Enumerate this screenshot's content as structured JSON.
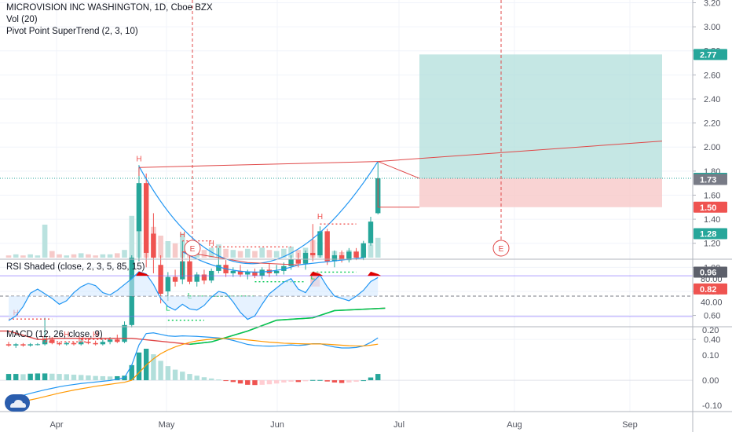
{
  "header": {
    "symbol_line": "MICROVISION INC WASHINGTON, 1D, Cboe BZX",
    "vol_label": "Vol (20)",
    "supertrend_label": "Pivot Point SuperTrend (2, 3, 10)"
  },
  "rsi_pane": {
    "label": "RSI Shaded (close, 2, 3, 5, 85, 15)"
  },
  "macd_pane": {
    "label": "MACD (12, 26, close, 9)"
  },
  "colors": {
    "up": "#26a69a",
    "down": "#ef5350",
    "profit_zone": "#b2dfdb",
    "loss_zone": "#f8c8c8",
    "trend_line": "#e04848",
    "supertrend": "#00c853",
    "blue": "#2196f3",
    "orange": "#ff9800"
  },
  "chart_data": [
    {
      "type": "candlestick",
      "title": "MICROVISION INC WASHINGTON, 1D, Cboe BZX",
      "x_tick_labels": [
        "Apr",
        "May",
        "Jun",
        "Jul",
        "Aug",
        "Sep"
      ],
      "y_ticks": [
        "0.40",
        "0.60",
        "0.80",
        "1.00",
        "1.20",
        "1.40",
        "1.60",
        "1.80",
        "2.00",
        "2.20",
        "2.40",
        "2.60",
        "2.80",
        "3.00",
        "3.20"
      ],
      "ylim": [
        0.32,
        3.28
      ],
      "price_tags": [
        {
          "label": "2.77",
          "value": 2.77,
          "color": "#26a69a"
        },
        {
          "label": "1.74",
          "value": 1.74,
          "color": "#26a69a"
        },
        {
          "label": "1.73",
          "value": 1.73,
          "color": "#787b86"
        },
        {
          "label": "1.50",
          "value": 1.5,
          "color": "#ef5350"
        },
        {
          "label": "1.28",
          "value": 1.28,
          "color": "#26a69a"
        },
        {
          "label": "0.96",
          "value": 0.96,
          "color": "#5d606b"
        },
        {
          "label": "0.82",
          "value": 0.82,
          "color": "#ef5350"
        }
      ],
      "candles": [
        {
          "d": 0,
          "o": 0.36,
          "h": 0.38,
          "l": 0.34,
          "c": 0.35
        },
        {
          "d": 1,
          "o": 0.35,
          "h": 0.37,
          "l": 0.33,
          "c": 0.36
        },
        {
          "d": 2,
          "o": 0.36,
          "h": 0.37,
          "l": 0.34,
          "c": 0.35
        },
        {
          "d": 3,
          "o": 0.35,
          "h": 0.37,
          "l": 0.34,
          "c": 0.36
        },
        {
          "d": 4,
          "o": 0.36,
          "h": 0.37,
          "l": 0.35,
          "c": 0.36
        },
        {
          "d": 5,
          "o": 0.36,
          "h": 0.58,
          "l": 0.35,
          "c": 0.4
        },
        {
          "d": 6,
          "o": 0.4,
          "h": 0.42,
          "l": 0.36,
          "c": 0.37
        },
        {
          "d": 7,
          "o": 0.37,
          "h": 0.38,
          "l": 0.35,
          "c": 0.36
        },
        {
          "d": 8,
          "o": 0.36,
          "h": 0.38,
          "l": 0.35,
          "c": 0.37
        },
        {
          "d": 9,
          "o": 0.37,
          "h": 0.38,
          "l": 0.35,
          "c": 0.36
        },
        {
          "d": 10,
          "o": 0.36,
          "h": 0.4,
          "l": 0.35,
          "c": 0.38
        },
        {
          "d": 11,
          "o": 0.38,
          "h": 0.41,
          "l": 0.36,
          "c": 0.37
        },
        {
          "d": 12,
          "o": 0.37,
          "h": 0.39,
          "l": 0.35,
          "c": 0.36
        },
        {
          "d": 13,
          "o": 0.36,
          "h": 0.4,
          "l": 0.35,
          "c": 0.38
        },
        {
          "d": 14,
          "o": 0.38,
          "h": 0.42,
          "l": 0.36,
          "c": 0.4
        },
        {
          "d": 15,
          "o": 0.4,
          "h": 0.44,
          "l": 0.37,
          "c": 0.38
        },
        {
          "d": 16,
          "o": 0.38,
          "h": 0.55,
          "l": 0.37,
          "c": 0.52
        },
        {
          "d": 17,
          "o": 0.52,
          "h": 1.1,
          "l": 0.5,
          "c": 1.08
        },
        {
          "d": 18,
          "o": 1.3,
          "h": 1.85,
          "l": 1.05,
          "c": 1.7
        },
        {
          "d": 19,
          "o": 1.7,
          "h": 1.78,
          "l": 1.0,
          "c": 1.12
        },
        {
          "d": 20,
          "o": 1.28,
          "h": 1.45,
          "l": 0.95,
          "c": 1.08
        },
        {
          "d": 21,
          "o": 1.02,
          "h": 1.1,
          "l": 0.7,
          "c": 0.78
        },
        {
          "d": 22,
          "o": 0.8,
          "h": 0.96,
          "l": 0.72,
          "c": 0.92
        },
        {
          "d": 23,
          "o": 0.92,
          "h": 0.98,
          "l": 0.84,
          "c": 0.88
        },
        {
          "d": 24,
          "o": 0.9,
          "h": 1.22,
          "l": 0.86,
          "c": 1.05
        },
        {
          "d": 25,
          "o": 1.05,
          "h": 1.1,
          "l": 0.86,
          "c": 0.88
        },
        {
          "d": 26,
          "o": 0.88,
          "h": 0.96,
          "l": 0.84,
          "c": 0.94
        },
        {
          "d": 27,
          "o": 0.94,
          "h": 0.98,
          "l": 0.86,
          "c": 0.89
        },
        {
          "d": 28,
          "o": 0.89,
          "h": 0.99,
          "l": 0.87,
          "c": 0.97
        },
        {
          "d": 29,
          "o": 0.97,
          "h": 1.16,
          "l": 0.95,
          "c": 1.02
        },
        {
          "d": 30,
          "o": 1.02,
          "h": 1.06,
          "l": 0.92,
          "c": 0.95
        },
        {
          "d": 31,
          "o": 0.95,
          "h": 1.0,
          "l": 0.92,
          "c": 0.97
        },
        {
          "d": 32,
          "o": 0.97,
          "h": 1.02,
          "l": 0.92,
          "c": 0.94
        },
        {
          "d": 33,
          "o": 0.94,
          "h": 0.98,
          "l": 0.9,
          "c": 0.96
        },
        {
          "d": 34,
          "o": 0.96,
          "h": 0.99,
          "l": 0.91,
          "c": 0.93
        },
        {
          "d": 35,
          "o": 0.93,
          "h": 1.0,
          "l": 0.9,
          "c": 0.98
        },
        {
          "d": 36,
          "o": 0.98,
          "h": 1.03,
          "l": 0.92,
          "c": 0.95
        },
        {
          "d": 37,
          "o": 0.95,
          "h": 1.02,
          "l": 0.93,
          "c": 0.97
        },
        {
          "d": 38,
          "o": 0.97,
          "h": 1.04,
          "l": 0.94,
          "c": 1.01
        },
        {
          "d": 39,
          "o": 1.01,
          "h": 1.1,
          "l": 0.98,
          "c": 1.07
        },
        {
          "d": 40,
          "o": 1.07,
          "h": 1.12,
          "l": 1.0,
          "c": 1.03
        },
        {
          "d": 41,
          "o": 1.03,
          "h": 1.14,
          "l": 0.98,
          "c": 1.12
        },
        {
          "d": 42,
          "o": 1.12,
          "h": 1.36,
          "l": 1.05,
          "c": 1.1
        },
        {
          "d": 43,
          "o": 1.1,
          "h": 1.34,
          "l": 1.08,
          "c": 1.3
        },
        {
          "d": 44,
          "o": 1.3,
          "h": 1.32,
          "l": 1.02,
          "c": 1.05
        },
        {
          "d": 45,
          "o": 1.05,
          "h": 1.14,
          "l": 1.0,
          "c": 1.1
        },
        {
          "d": 46,
          "o": 1.1,
          "h": 1.14,
          "l": 1.04,
          "c": 1.06
        },
        {
          "d": 47,
          "o": 1.06,
          "h": 1.16,
          "l": 1.04,
          "c": 1.13
        },
        {
          "d": 48,
          "o": 1.13,
          "h": 1.16,
          "l": 1.06,
          "c": 1.08
        },
        {
          "d": 49,
          "o": 1.08,
          "h": 1.22,
          "l": 1.06,
          "c": 1.2
        },
        {
          "d": 50,
          "o": 1.2,
          "h": 1.42,
          "l": 1.18,
          "c": 1.38
        },
        {
          "d": 51,
          "o": 1.45,
          "h": 1.88,
          "l": 1.44,
          "c": 1.74
        }
      ],
      "volume": [
        2,
        3,
        2,
        3,
        2,
        30,
        6,
        3,
        2,
        3,
        4,
        3,
        2,
        3,
        3,
        4,
        7,
        38,
        65,
        42,
        28,
        20,
        15,
        13,
        22,
        10,
        8,
        7,
        9,
        12,
        8,
        7,
        6,
        8,
        6,
        9,
        7,
        6,
        8,
        10,
        7,
        9,
        16,
        14,
        9,
        6,
        5,
        7,
        6,
        8,
        12,
        18
      ],
      "supertrend": [
        {
          "d": 0,
          "v": 0.47
        },
        {
          "d": 4,
          "v": 0.4
        },
        {
          "d": 5,
          "v": 0.4
        },
        {
          "d": 6,
          "v": 0.41
        },
        {
          "d": 16,
          "v": 0.41
        },
        {
          "d": 17,
          "v": 0.41
        },
        {
          "d": 25,
          "v": 0.36
        },
        {
          "d": 28,
          "v": 0.38
        },
        {
          "d": 33,
          "v": 0.47
        },
        {
          "d": 37,
          "v": 0.56
        },
        {
          "d": 42,
          "v": 0.58
        },
        {
          "d": 45,
          "v": 0.64
        },
        {
          "d": 52,
          "v": 0.66
        }
      ],
      "pivot_labels": [
        {
          "t": "H",
          "d": -5.5,
          "v": 0.38
        },
        {
          "t": "H",
          "d": -3,
          "v": 0.38
        },
        {
          "t": "H",
          "d": 1,
          "v": 0.6
        },
        {
          "t": "H",
          "d": 5,
          "v": 0.38
        },
        {
          "t": "H",
          "d": 8,
          "v": 0.42
        },
        {
          "t": "H",
          "d": 10,
          "v": 0.38
        },
        {
          "t": "H",
          "d": 12,
          "v": 0.42
        },
        {
          "t": "H",
          "d": 18,
          "v": 1.88
        },
        {
          "t": "H",
          "d": 24,
          "v": 1.25
        },
        {
          "t": "H",
          "d": 28,
          "v": 1.18
        },
        {
          "t": "H",
          "d": 43,
          "v": 1.4
        },
        {
          "t": "L",
          "d": 22,
          "v": 0.64
        },
        {
          "t": "L",
          "d": 25,
          "v": 0.74
        },
        {
          "t": "L",
          "d": 42,
          "v": 0.9
        }
      ]
    },
    {
      "type": "line",
      "title": "RSI Shaded (close, 2, 3, 5, 85, 15)",
      "y_ticks": [
        "40.00",
        "80.00"
      ],
      "ylim": [
        -5,
        105
      ],
      "bands": [
        85,
        50,
        15
      ],
      "series": [
        {
          "color": "#2196f3",
          "values": [
            8,
            16,
            32,
            55,
            62,
            54,
            46,
            36,
            42,
            56,
            66,
            72,
            68,
            56,
            52,
            60,
            70,
            80,
            92,
            88,
            70,
            46,
            32,
            26,
            36,
            28,
            26,
            34,
            48,
            58,
            55,
            40,
            22,
            10,
            16,
            36,
            54,
            64,
            74,
            80,
            62,
            56,
            74,
            86,
            66,
            50,
            46,
            42,
            50,
            60,
            75,
            82
          ]
        }
      ]
    },
    {
      "type": "line",
      "title": "MACD (12, 26, close, 9)",
      "y_ticks": [
        "-0.10",
        "0.00",
        "0.10",
        "0.20"
      ],
      "ylim": [
        -0.13,
        0.22
      ],
      "series": [
        {
          "color": "#2196f3",
          "values": [
            -0.07,
            -0.065,
            -0.06,
            -0.052,
            -0.045,
            -0.038,
            -0.032,
            -0.026,
            -0.021,
            -0.017,
            -0.013,
            -0.01,
            -0.007,
            -0.004,
            -0.001,
            0.004,
            0.01,
            0.06,
            0.14,
            0.185,
            0.188,
            0.182,
            0.176,
            0.174,
            0.176,
            0.175,
            0.174,
            0.172,
            0.17,
            0.168,
            0.164,
            0.158,
            0.15,
            0.142,
            0.138,
            0.136,
            0.135,
            0.136,
            0.138,
            0.14,
            0.138,
            0.14,
            0.145,
            0.145,
            0.138,
            0.132,
            0.128,
            0.128,
            0.13,
            0.136,
            0.15,
            0.168
          ]
        },
        {
          "color": "#ff9800",
          "values": [
            -0.095,
            -0.09,
            -0.084,
            -0.078,
            -0.072,
            -0.065,
            -0.058,
            -0.051,
            -0.045,
            -0.039,
            -0.034,
            -0.029,
            -0.024,
            -0.02,
            -0.016,
            -0.012,
            -0.008,
            0.0,
            0.03,
            0.06,
            0.085,
            0.105,
            0.12,
            0.132,
            0.142,
            0.15,
            0.156,
            0.16,
            0.163,
            0.165,
            0.166,
            0.165,
            0.163,
            0.16,
            0.157,
            0.154,
            0.151,
            0.149,
            0.147,
            0.146,
            0.145,
            0.144,
            0.144,
            0.144,
            0.143,
            0.141,
            0.139,
            0.137,
            0.136,
            0.136,
            0.139,
            0.143
          ]
        }
      ],
      "histogram": [
        0.025,
        0.025,
        0.024,
        0.026,
        0.027,
        0.027,
        0.026,
        0.025,
        0.024,
        0.022,
        0.021,
        0.019,
        0.017,
        0.016,
        0.015,
        0.016,
        0.018,
        0.06,
        0.11,
        0.125,
        0.103,
        0.077,
        0.056,
        0.042,
        0.034,
        0.025,
        0.018,
        0.012,
        0.007,
        0.003,
        -0.002,
        -0.007,
        -0.013,
        -0.018,
        -0.019,
        -0.018,
        -0.016,
        -0.013,
        -0.009,
        -0.006,
        -0.007,
        -0.004,
        0.001,
        0.001,
        -0.005,
        -0.009,
        -0.011,
        -0.009,
        -0.006,
        0.0,
        0.011,
        0.025
      ]
    }
  ]
}
